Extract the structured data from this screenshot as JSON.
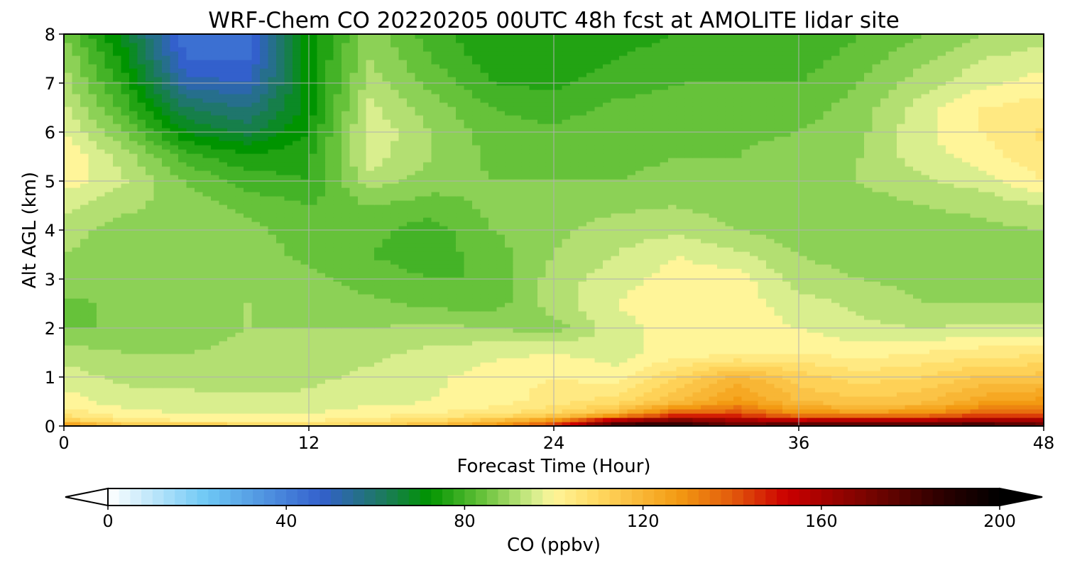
{
  "chart_data": {
    "type": "heatmap",
    "title": "WRF-Chem CO  20220205 00UTC 48h fcst at AMOLITE lidar site",
    "xlabel": "Forecast Time (Hour)",
    "ylabel": "Alt AGL (km)",
    "xlim": [
      0,
      48
    ],
    "ylim": [
      0,
      8
    ],
    "x_ticks": [
      "0",
      "12",
      "24",
      "36",
      "48"
    ],
    "y_ticks": [
      "0",
      "1",
      "2",
      "3",
      "4",
      "5",
      "6",
      "7",
      "8"
    ],
    "grid": true,
    "x_hours": [
      0,
      3,
      6,
      9,
      12,
      15,
      18,
      21,
      24,
      27,
      30,
      33,
      36,
      39,
      42,
      45,
      48
    ],
    "z_km": [
      0,
      0.1,
      0.25,
      0.5,
      1,
      1.5,
      2,
      2.5,
      3,
      3.5,
      4,
      4.5,
      5,
      5.5,
      6,
      6.5,
      7,
      7.5,
      8
    ],
    "values_ppbv": [
      [
        135,
        118,
        118,
        115,
        112,
        115,
        120,
        130,
        145,
        190,
        195,
        175,
        190,
        190,
        185,
        188,
        180
      ],
      [
        115,
        105,
        102,
        102,
        102,
        106,
        110,
        118,
        132,
        165,
        175,
        165,
        160,
        162,
        163,
        168,
        165
      ],
      [
        105,
        100,
        98,
        98,
        98,
        100,
        102,
        105,
        110,
        120,
        140,
        142,
        130,
        128,
        130,
        138,
        140
      ],
      [
        100,
        96,
        95,
        95,
        95,
        97,
        98,
        100,
        104,
        108,
        118,
        128,
        118,
        115,
        117,
        125,
        128
      ],
      [
        96,
        93,
        93,
        92,
        93,
        95,
        97,
        100,
        102,
        100,
        110,
        120,
        112,
        108,
        110,
        115,
        116
      ],
      [
        92,
        90,
        90,
        91,
        92,
        93,
        95,
        97,
        98,
        96,
        100,
        100,
        102,
        100,
        102,
        104,
        105
      ],
      [
        86,
        86,
        88,
        90,
        90,
        90,
        91,
        90,
        88,
        96,
        100,
        100,
        98,
        95,
        94,
        95,
        95
      ],
      [
        85,
        87,
        88,
        90,
        89,
        87,
        85,
        84,
        92,
        98,
        102,
        100,
        96,
        93,
        90,
        90,
        90
      ],
      [
        88,
        88,
        87,
        89,
        87,
        84,
        82,
        82,
        92,
        96,
        100,
        100,
        92,
        90,
        89,
        89,
        89
      ],
      [
        90,
        87,
        86,
        88,
        85,
        82,
        80,
        84,
        90,
        94,
        98,
        95,
        90,
        88,
        88,
        88,
        89
      ],
      [
        92,
        88,
        88,
        87,
        84,
        83,
        80,
        86,
        89,
        92,
        93,
        90,
        88,
        87,
        88,
        89,
        90
      ],
      [
        95,
        91,
        88,
        85,
        82,
        86,
        84,
        87,
        88,
        89,
        90,
        88,
        87,
        88,
        90,
        91,
        94
      ],
      [
        100,
        94,
        86,
        80,
        78,
        92,
        88,
        86,
        86,
        86,
        87,
        86,
        88,
        90,
        93,
        96,
        102
      ],
      [
        102,
        92,
        80,
        75,
        77,
        96,
        90,
        85,
        84,
        85,
        86,
        86,
        88,
        90,
        96,
        100,
        105
      ],
      [
        98,
        86,
        70,
        65,
        74,
        97,
        90,
        84,
        83,
        85,
        86,
        85,
        86,
        89,
        97,
        102,
        107
      ],
      [
        95,
        80,
        62,
        58,
        72,
        95,
        88,
        82,
        80,
        83,
        84,
        83,
        84,
        88,
        96,
        102,
        104
      ],
      [
        92,
        76,
        52,
        50,
        72,
        92,
        85,
        78,
        77,
        80,
        82,
        82,
        82,
        86,
        92,
        97,
        100
      ],
      [
        90,
        72,
        46,
        46,
        72,
        90,
        82,
        76,
        75,
        78,
        80,
        80,
        80,
        84,
        89,
        94,
        96
      ],
      [
        86,
        68,
        42,
        42,
        72,
        88,
        80,
        74,
        74,
        76,
        78,
        78,
        78,
        82,
        86,
        90,
        92
      ]
    ],
    "colorbar": {
      "label": "CO  (ppbv)",
      "min": 0,
      "max": 200,
      "ticks": [
        "0",
        "40",
        "80",
        "120",
        "160",
        "200"
      ],
      "extend": "both",
      "stops": [
        {
          "v": 0,
          "c": "#ffffff"
        },
        {
          "v": 22,
          "c": "#6ec8f5"
        },
        {
          "v": 48,
          "c": "#3360cc"
        },
        {
          "v": 62,
          "c": "#1c7a5c"
        },
        {
          "v": 72,
          "c": "#009400"
        },
        {
          "v": 84,
          "c": "#66c23a"
        },
        {
          "v": 96,
          "c": "#d9ee8e"
        },
        {
          "v": 100,
          "c": "#fff599"
        },
        {
          "v": 110,
          "c": "#ffd860"
        },
        {
          "v": 128,
          "c": "#f39a12"
        },
        {
          "v": 140,
          "c": "#e25a0c"
        },
        {
          "v": 152,
          "c": "#cc0000"
        },
        {
          "v": 170,
          "c": "#7a0400"
        },
        {
          "v": 188,
          "c": "#280000"
        },
        {
          "v": 200,
          "c": "#000000"
        }
      ]
    }
  }
}
